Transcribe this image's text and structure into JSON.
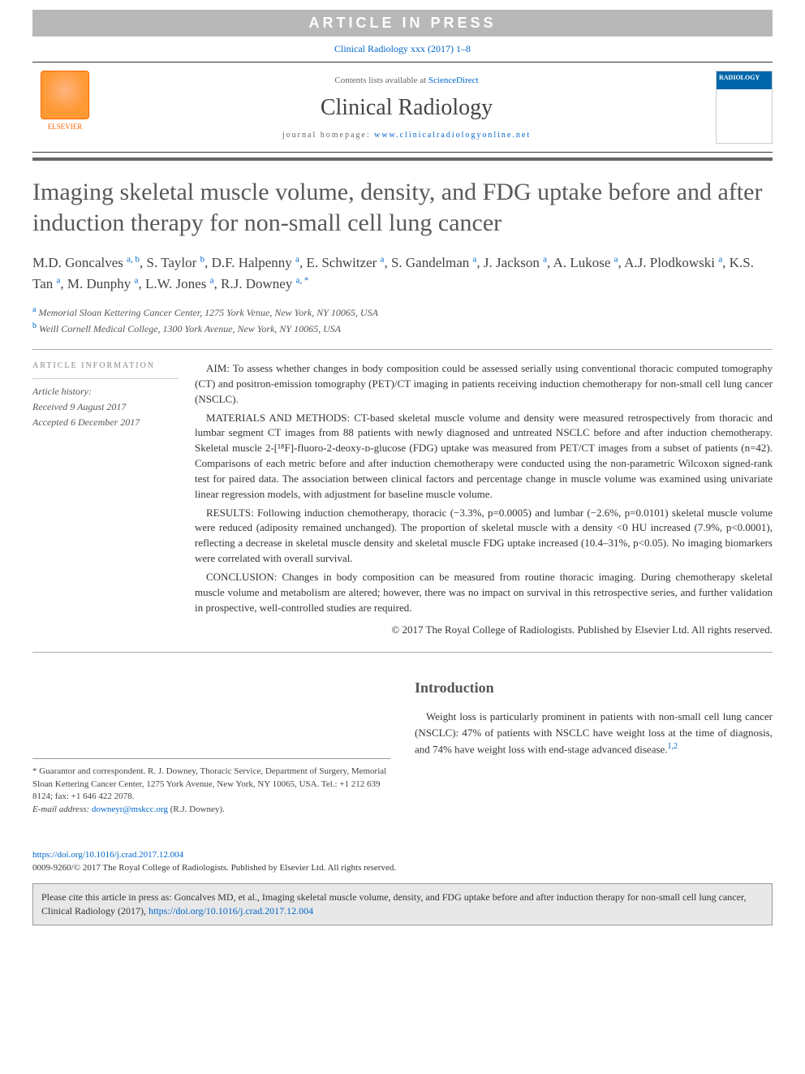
{
  "banner": "ARTICLE IN PRESS",
  "citation": "Clinical Radiology xxx (2017) 1–8",
  "header": {
    "elsevier": "ELSEVIER",
    "contents_prefix": "Contents lists available at ",
    "contents_link": "ScienceDirect",
    "journal_name": "Clinical Radiology",
    "homepage_prefix": "journal homepage: ",
    "homepage_link": "www.clinicalradiologyonline.net",
    "cover_label": "RADIOLOGY"
  },
  "title": "Imaging skeletal muscle volume, density, and FDG uptake before and after induction therapy for non-small cell lung cancer",
  "authors_html": "M.D. Goncalves <sup>a, b</sup>, S. Taylor <sup>b</sup>, D.F. Halpenny <sup>a</sup>, E. Schwitzer <sup>a</sup>, S. Gandelman <sup>a</sup>, J. Jackson <sup>a</sup>, A. Lukose <sup>a</sup>, A.J. Plodkowski <sup>a</sup>, K.S. Tan <sup>a</sup>, M. Dunphy <sup>a</sup>, L.W. Jones <sup>a</sup>, R.J. Downey <sup>a, *</sup>",
  "affiliations": [
    {
      "sup": "a",
      "text": "Memorial Sloan Kettering Cancer Center, 1275 York Venue, New York, NY 10065, USA"
    },
    {
      "sup": "b",
      "text": "Weill Cornell Medical College, 1300 York Avenue, New York, NY 10065, USA"
    }
  ],
  "article_info": {
    "heading": "ARTICLE INFORMATION",
    "history_label": "Article history:",
    "received": "Received 9 August 2017",
    "accepted": "Accepted 6 December 2017"
  },
  "abstract": {
    "aim": "AIM: To assess whether changes in body composition could be assessed serially using conventional thoracic computed tomography (CT) and positron-emission tomography (PET)/CT imaging in patients receiving induction chemotherapy for non-small cell lung cancer (NSCLC).",
    "methods": "MATERIALS AND METHODS: CT-based skeletal muscle volume and density were measured retrospectively from thoracic and lumbar segment CT images from 88 patients with newly diagnosed and untreated NSCLC before and after induction chemotherapy. Skeletal muscle 2-[¹⁸F]-fluoro-2-deoxy-ᴅ-glucose (FDG) uptake was measured from PET/CT images from a subset of patients (n=42). Comparisons of each metric before and after induction chemotherapy were conducted using the non-parametric Wilcoxon signed-rank test for paired data. The association between clinical factors and percentage change in muscle volume was examined using univariate linear regression models, with adjustment for baseline muscle volume.",
    "results": "RESULTS: Following induction chemotherapy, thoracic (−3.3%, p=0.0005) and lumbar (−2.6%, p=0.0101) skeletal muscle volume were reduced (adiposity remained unchanged). The proportion of skeletal muscle with a density <0 HU increased (7.9%, p<0.0001), reflecting a decrease in skeletal muscle density and skeletal muscle FDG uptake increased (10.4–31%, p<0.05). No imaging biomarkers were correlated with overall survival.",
    "conclusion": "CONCLUSION: Changes in body composition can be measured from routine thoracic imaging. During chemotherapy skeletal muscle volume and metabolism are altered; however, there was no impact on survival in this retrospective series, and further validation in prospective, well-controlled studies are required.",
    "copyright": "© 2017 The Royal College of Radiologists. Published by Elsevier Ltd. All rights reserved."
  },
  "footnotes": {
    "correspondent": "* Guarantor and correspondent. R. J. Downey, Thoracic Service, Department of Surgery, Memorial Sloan Kettering Cancer Center, 1275 York Avenue, New York, NY 10065, USA. Tel.: +1 212 639 8124; fax: +1 646 422 2078.",
    "email_label": "E-mail address: ",
    "email": "downeyr@mskcc.org",
    "email_suffix": " (R.J. Downey)."
  },
  "intro": {
    "heading": "Introduction",
    "p1": "Weight loss is particularly prominent in patients with non-small cell lung cancer (NSCLC): 47% of patients with NSCLC have weight loss at the time of diagnosis, and 74% have weight loss with end-stage advanced disease."
  },
  "doi": {
    "link": "https://doi.org/10.1016/j.crad.2017.12.004",
    "copyright": "0009-9260/© 2017 The Royal College of Radiologists. Published by Elsevier Ltd. All rights reserved."
  },
  "citebox": {
    "text_prefix": "Please cite this article in press as: Goncalves MD, et al., Imaging skeletal muscle volume, density, and FDG uptake before and after induction therapy for non-small cell lung cancer, Clinical Radiology (2017), ",
    "link": "https://doi.org/10.1016/j.crad.2017.12.004"
  }
}
